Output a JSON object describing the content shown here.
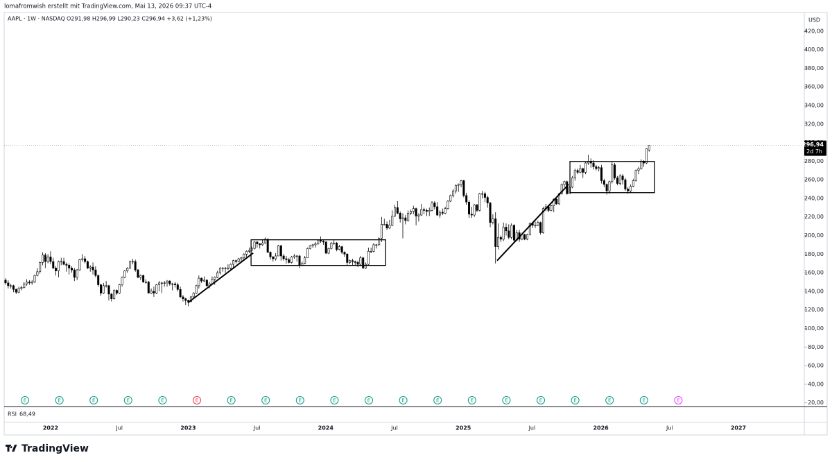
{
  "header": "lomafromwish erstellt mit TradingView.com, Mai 13, 2026 09:37 UTC-4",
  "chart_data": {
    "type": "candlestick",
    "symbol": "AAPL · 1W · NASDAQ",
    "ohlc_text": "O291,98  H296,99  L290,23  C296,94  +3,62 (+1,23%)",
    "currency": "USD",
    "ylim": [
      16,
      440
    ],
    "yticks": [
      {
        "value": 20,
        "label": "20,00"
      },
      {
        "value": 40,
        "label": "40,00"
      },
      {
        "value": 60,
        "label": "60,00"
      },
      {
        "value": 80,
        "label": "80,00"
      },
      {
        "value": 100,
        "label": "100,00"
      },
      {
        "value": 120,
        "label": "120,00"
      },
      {
        "value": 140,
        "label": "140,00"
      },
      {
        "value": 160,
        "label": "160,00"
      },
      {
        "value": 180,
        "label": "180,00"
      },
      {
        "value": 200,
        "label": "200,00"
      },
      {
        "value": 220,
        "label": "220,00"
      },
      {
        "value": 240,
        "label": "240,00"
      },
      {
        "value": 260,
        "label": "260,00"
      },
      {
        "value": 280,
        "label": "280,00"
      },
      {
        "value": 300,
        "label": "300,00"
      },
      {
        "value": 320,
        "label": "320,00"
      },
      {
        "value": 340,
        "label": "340,00"
      },
      {
        "value": 360,
        "label": "360,00"
      },
      {
        "value": 380,
        "label": "380,00"
      },
      {
        "value": 400,
        "label": "400,00"
      },
      {
        "value": 420,
        "label": "420,00"
      }
    ],
    "x_labels": [
      "2022",
      "Jul",
      "2023",
      "Jul",
      "2024",
      "Jul",
      "2025",
      "Jul",
      "2026",
      "Jul",
      "2027"
    ],
    "last_price": {
      "value": 296.94,
      "label": "296,94"
    },
    "countdown": "2d 7h",
    "rsi_label": "RSI",
    "rsi_value": "68,49",
    "up_color": "#ffffff",
    "down_color": "#000000",
    "outline_color": "#000000",
    "candles": [
      [
        152,
        154,
        147,
        149
      ],
      [
        149,
        152,
        143,
        146
      ],
      [
        146,
        148,
        143,
        146
      ],
      [
        146,
        147,
        139,
        142
      ],
      [
        142,
        143,
        137,
        139
      ],
      [
        139,
        145,
        138,
        143
      ],
      [
        143,
        146,
        141,
        144
      ],
      [
        144,
        150,
        143,
        148
      ],
      [
        148,
        153,
        146,
        150
      ],
      [
        150,
        152,
        147,
        149
      ],
      [
        149,
        152,
        147,
        150
      ],
      [
        150,
        158,
        149,
        157
      ],
      [
        157,
        165,
        156,
        161
      ],
      [
        161,
        172,
        159,
        171
      ],
      [
        171,
        182,
        168,
        179
      ],
      [
        179,
        181,
        165,
        172
      ],
      [
        172,
        180,
        170,
        177
      ],
      [
        177,
        183,
        169,
        172
      ],
      [
        172,
        176,
        164,
        165
      ],
      [
        165,
        167,
        157,
        162
      ],
      [
        162,
        173,
        155,
        172
      ],
      [
        172,
        176,
        168,
        172
      ],
      [
        172,
        176,
        168,
        169
      ],
      [
        169,
        171,
        161,
        168
      ],
      [
        168,
        170,
        158,
        165
      ],
      [
        165,
        167,
        160,
        163
      ],
      [
        163,
        165,
        151,
        155
      ],
      [
        155,
        164,
        152,
        163
      ],
      [
        163,
        175,
        162,
        174
      ],
      [
        174,
        180,
        172,
        175
      ],
      [
        175,
        178,
        170,
        172
      ],
      [
        172,
        173,
        164,
        165
      ],
      [
        165,
        168,
        161,
        166
      ],
      [
        166,
        171,
        158,
        163
      ],
      [
        163,
        167,
        155,
        157
      ],
      [
        157,
        158,
        145,
        147
      ],
      [
        147,
        148,
        135,
        138
      ],
      [
        138,
        149,
        137,
        146
      ],
      [
        146,
        151,
        144,
        146
      ],
      [
        146,
        147,
        130,
        137
      ],
      [
        137,
        138,
        129,
        132
      ],
      [
        132,
        142,
        131,
        141
      ],
      [
        141,
        142,
        136,
        138
      ],
      [
        138,
        148,
        137,
        147
      ],
      [
        147,
        156,
        145,
        155
      ],
      [
        155,
        163,
        154,
        162
      ],
      [
        162,
        166,
        160,
        165
      ],
      [
        165,
        173,
        164,
        172
      ],
      [
        172,
        175,
        169,
        172
      ],
      [
        172,
        174,
        161,
        163
      ],
      [
        163,
        164,
        154,
        155
      ],
      [
        155,
        158,
        152,
        157
      ],
      [
        157,
        158,
        149,
        150
      ],
      [
        150,
        153,
        148,
        150
      ],
      [
        150,
        151,
        138,
        138
      ],
      [
        138,
        143,
        137,
        140
      ],
      [
        140,
        145,
        134,
        138
      ],
      [
        138,
        148,
        137,
        147
      ],
      [
        147,
        151,
        140,
        149
      ],
      [
        149,
        150,
        138,
        149
      ],
      [
        149,
        151,
        145,
        149
      ],
      [
        149,
        152,
        145,
        151
      ],
      [
        151,
        152,
        146,
        148
      ],
      [
        148,
        149,
        141,
        148
      ],
      [
        148,
        150,
        144,
        147
      ],
      [
        147,
        149,
        140,
        142
      ],
      [
        142,
        145,
        133,
        134
      ],
      [
        134,
        136,
        129,
        132
      ],
      [
        132,
        133,
        125,
        130
      ],
      [
        130,
        131,
        124,
        129
      ],
      [
        129,
        135,
        128,
        134
      ],
      [
        134,
        139,
        133,
        138
      ],
      [
        138,
        147,
        137,
        146
      ],
      [
        146,
        157,
        143,
        154
      ],
      [
        154,
        155,
        149,
        151
      ],
      [
        151,
        156,
        150,
        152
      ],
      [
        152,
        153,
        145,
        146
      ],
      [
        146,
        150,
        143,
        148
      ],
      [
        148,
        156,
        147,
        153
      ],
      [
        153,
        156,
        147,
        155
      ],
      [
        155,
        162,
        154,
        160
      ],
      [
        160,
        166,
        158,
        165
      ],
      [
        165,
        166,
        161,
        165
      ],
      [
        165,
        166,
        160,
        165
      ],
      [
        165,
        169,
        163,
        165
      ],
      [
        165,
        170,
        163,
        169
      ],
      [
        169,
        174,
        165,
        173
      ],
      [
        173,
        174,
        170,
        172
      ],
      [
        172,
        176,
        171,
        175
      ],
      [
        175,
        177,
        172,
        176
      ],
      [
        176,
        181,
        174,
        180
      ],
      [
        180,
        184,
        177,
        183
      ],
      [
        183,
        187,
        181,
        184
      ],
      [
        184,
        188,
        183,
        186
      ],
      [
        186,
        194,
        185,
        193
      ],
      [
        193,
        194,
        187,
        191
      ],
      [
        191,
        192,
        186,
        190
      ],
      [
        190,
        196,
        189,
        192
      ],
      [
        192,
        198,
        191,
        196
      ],
      [
        196,
        197,
        181,
        182
      ],
      [
        182,
        183,
        174,
        177
      ],
      [
        177,
        178,
        172,
        175
      ],
      [
        175,
        181,
        173,
        178
      ],
      [
        178,
        190,
        178,
        189
      ],
      [
        189,
        190,
        173,
        178
      ],
      [
        178,
        180,
        173,
        175
      ],
      [
        175,
        178,
        170,
        174
      ],
      [
        174,
        176,
        170,
        171
      ],
      [
        171,
        178,
        170,
        177
      ],
      [
        177,
        180,
        175,
        178
      ],
      [
        178,
        179,
        172,
        178
      ],
      [
        178,
        179,
        165,
        168
      ],
      [
        168,
        172,
        167,
        170
      ],
      [
        170,
        178,
        169,
        176
      ],
      [
        176,
        187,
        176,
        186
      ],
      [
        186,
        190,
        185,
        189
      ],
      [
        189,
        191,
        187,
        190
      ],
      [
        190,
        193,
        187,
        191
      ],
      [
        191,
        196,
        190,
        195
      ],
      [
        195,
        199,
        192,
        194
      ],
      [
        194,
        195,
        190,
        193
      ],
      [
        193,
        194,
        180,
        181
      ],
      [
        181,
        187,
        180,
        186
      ],
      [
        186,
        193,
        185,
        192
      ],
      [
        192,
        196,
        190,
        192
      ],
      [
        192,
        193,
        183,
        185
      ],
      [
        185,
        190,
        184,
        188
      ],
      [
        188,
        189,
        180,
        182
      ],
      [
        182,
        183,
        177,
        180
      ],
      [
        180,
        181,
        168,
        171
      ],
      [
        171,
        174,
        169,
        173
      ],
      [
        173,
        175,
        168,
        172
      ],
      [
        172,
        173,
        168,
        171
      ],
      [
        171,
        173,
        166,
        169
      ],
      [
        169,
        178,
        167,
        176
      ],
      [
        176,
        177,
        164,
        165
      ],
      [
        165,
        171,
        164,
        169
      ],
      [
        169,
        187,
        168,
        183
      ],
      [
        183,
        187,
        181,
        183
      ],
      [
        183,
        192,
        182,
        190
      ],
      [
        190,
        191,
        186,
        190
      ],
      [
        190,
        198,
        189,
        197
      ],
      [
        197,
        220,
        193,
        212
      ],
      [
        212,
        218,
        211,
        212
      ],
      [
        212,
        215,
        206,
        208
      ],
      [
        208,
        217,
        207,
        211
      ],
      [
        211,
        227,
        210,
        221
      ],
      [
        221,
        233,
        220,
        230
      ],
      [
        230,
        237,
        223,
        224
      ],
      [
        224,
        226,
        214,
        218
      ],
      [
        218,
        224,
        197,
        219
      ],
      [
        219,
        222,
        212,
        216
      ],
      [
        216,
        227,
        215,
        224
      ],
      [
        224,
        228,
        222,
        226
      ],
      [
        226,
        232,
        223,
        229
      ],
      [
        229,
        230,
        211,
        221
      ],
      [
        221,
        224,
        215,
        222
      ],
      [
        222,
        234,
        221,
        228
      ],
      [
        228,
        230,
        223,
        227
      ],
      [
        227,
        229,
        221,
        226
      ],
      [
        226,
        230,
        221,
        227
      ],
      [
        227,
        237,
        226,
        235
      ],
      [
        235,
        237,
        228,
        231
      ],
      [
        231,
        236,
        221,
        222
      ],
      [
        222,
        227,
        219,
        225
      ],
      [
        225,
        229,
        222,
        224
      ],
      [
        224,
        231,
        223,
        229
      ],
      [
        229,
        238,
        228,
        237
      ],
      [
        237,
        244,
        236,
        243
      ],
      [
        243,
        250,
        241,
        248
      ],
      [
        248,
        255,
        245,
        254
      ],
      [
        254,
        256,
        247,
        255
      ],
      [
        255,
        260,
        252,
        259
      ],
      [
        259,
        260,
        241,
        243
      ],
      [
        243,
        246,
        233,
        236
      ],
      [
        236,
        238,
        219,
        223
      ],
      [
        223,
        231,
        219,
        222
      ],
      [
        222,
        234,
        220,
        233
      ],
      [
        233,
        234,
        225,
        227
      ],
      [
        227,
        246,
        226,
        245
      ],
      [
        245,
        248,
        240,
        245
      ],
      [
        245,
        247,
        236,
        241
      ],
      [
        241,
        243,
        230,
        235
      ],
      [
        235,
        236,
        209,
        214
      ],
      [
        214,
        223,
        212,
        218
      ],
      [
        218,
        225,
        170,
        188
      ],
      [
        188,
        213,
        185,
        198
      ],
      [
        198,
        200,
        193,
        196
      ],
      [
        196,
        214,
        194,
        209
      ],
      [
        209,
        213,
        200,
        205
      ],
      [
        205,
        212,
        196,
        198
      ],
      [
        198,
        213,
        196,
        211
      ],
      [
        211,
        212,
        193,
        195
      ],
      [
        195,
        206,
        194,
        203
      ],
      [
        203,
        206,
        193,
        196
      ],
      [
        196,
        203,
        195,
        201
      ],
      [
        201,
        202,
        195,
        196
      ],
      [
        196,
        202,
        195,
        201
      ],
      [
        201,
        214,
        200,
        213
      ],
      [
        213,
        214,
        208,
        211
      ],
      [
        211,
        215,
        208,
        211
      ],
      [
        211,
        216,
        210,
        214
      ],
      [
        214,
        215,
        201,
        203
      ],
      [
        203,
        231,
        202,
        229
      ],
      [
        229,
        234,
        226,
        231
      ],
      [
        231,
        233,
        225,
        227
      ],
      [
        227,
        233,
        226,
        232
      ],
      [
        232,
        240,
        225,
        239
      ],
      [
        239,
        240,
        233,
        234
      ],
      [
        234,
        246,
        233,
        245
      ],
      [
        245,
        256,
        244,
        255
      ],
      [
        255,
        259,
        252,
        258
      ],
      [
        258,
        259,
        244,
        245
      ],
      [
        245,
        253,
        245,
        252
      ],
      [
        252,
        264,
        251,
        262
      ],
      [
        262,
        272,
        259,
        270
      ],
      [
        270,
        272,
        266,
        268
      ],
      [
        268,
        276,
        267,
        272
      ],
      [
        272,
        273,
        262,
        268
      ],
      [
        268,
        279,
        266,
        278
      ],
      [
        278,
        287,
        276,
        280
      ],
      [
        280,
        283,
        273,
        278
      ],
      [
        278,
        281,
        271,
        274
      ],
      [
        274,
        276,
        270,
        272
      ],
      [
        272,
        275,
        269,
        273
      ],
      [
        273,
        276,
        256,
        259
      ],
      [
        259,
        261,
        252,
        255
      ],
      [
        255,
        256,
        244,
        248
      ],
      [
        248,
        259,
        245,
        258
      ],
      [
        258,
        279,
        256,
        276
      ],
      [
        276,
        278,
        260,
        262
      ],
      [
        262,
        264,
        254,
        256
      ],
      [
        256,
        266,
        254,
        264
      ],
      [
        264,
        266,
        255,
        260
      ],
      [
        260,
        262,
        248,
        250
      ],
      [
        250,
        252,
        245,
        248
      ],
      [
        248,
        255,
        246,
        253
      ],
      [
        253,
        261,
        252,
        259
      ],
      [
        259,
        271,
        258,
        270
      ],
      [
        270,
        274,
        266,
        272
      ],
      [
        272,
        282,
        271,
        280
      ],
      [
        280,
        281,
        274,
        278
      ],
      [
        278,
        294,
        277,
        293.32
      ],
      [
        291.98,
        296.99,
        290.23,
        296.94
      ]
    ],
    "boxes": [
      {
        "x": [
          92.7,
          143.5
        ],
        "y": [
          167.8,
          195.4
        ]
      },
      {
        "x": [
          213.1,
          245
        ],
        "y": [
          246.1,
          279.7
        ]
      }
    ],
    "trendlines": [
      {
        "x": [
          68.8,
          93.5
        ],
        "y": [
          127.5,
          181.2
        ]
      },
      {
        "x": [
          185.6,
          212.6
        ],
        "y": [
          173,
          255
        ]
      }
    ],
    "earnings": {
      "label": "E",
      "colors": [
        "#089981",
        "#089981",
        "#089981",
        "#089981",
        "#089981",
        "#f23645",
        "#089981",
        "#089981",
        "#089981",
        "#089981",
        "#089981",
        "#089981",
        "#089981",
        "#089981",
        "#089981",
        "#089981",
        "#089981",
        "#089981",
        "#089981",
        "#e040fb"
      ]
    }
  },
  "footer": "TradingView"
}
